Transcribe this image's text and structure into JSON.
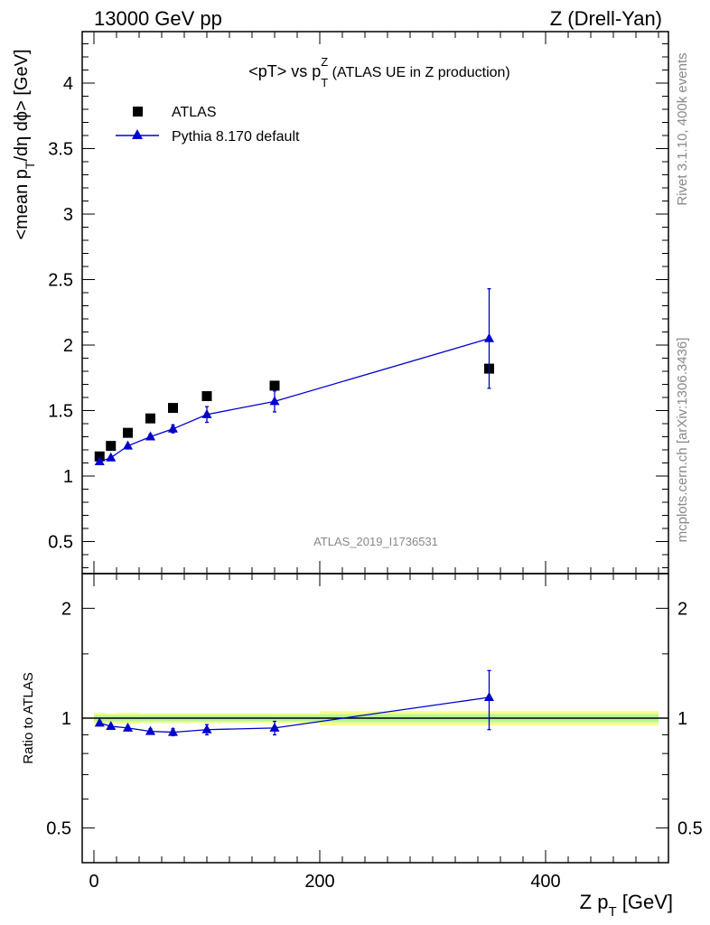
{
  "header": {
    "left": "13000 GeV pp",
    "right": "Z (Drell-Yan)"
  },
  "side_labels": {
    "rivet": "Rivet 3.1.10,  400k events",
    "mcplots": "mcplots.cern.ch [arXiv:1306.3436]"
  },
  "watermark": "ATLAS_2019_I1736531",
  "chart_data": [
    {
      "type": "scatter",
      "title_main": "<pT> vs p",
      "title_sub": "T",
      "title_sup": "Z",
      "title_rest": " (ATLAS UE in Z production)",
      "ylabel_main": "<mean p",
      "ylabel_sub": "T",
      "ylabel_rest": "/dη dϕ> [GeV]",
      "xlim": [
        0,
        500
      ],
      "ylim": [
        0.3,
        4.4
      ],
      "grid": false,
      "legend_position": "top-left",
      "yticks": [
        "0.5",
        "1",
        "1.5",
        "2",
        "2.5",
        "3",
        "3.5",
        "4"
      ],
      "series": [
        {
          "name": "ATLAS",
          "marker": "square",
          "color": "#000000",
          "x": [
            5,
            15,
            30,
            50,
            70,
            100,
            160,
            350
          ],
          "y": [
            1.15,
            1.23,
            1.33,
            1.44,
            1.52,
            1.61,
            1.69,
            1.82
          ]
        },
        {
          "name": "Pythia 8.170 default",
          "marker": "triangle",
          "color": "#0000cc",
          "x": [
            5,
            15,
            30,
            50,
            70,
            100,
            160,
            350
          ],
          "y": [
            1.11,
            1.14,
            1.23,
            1.3,
            1.36,
            1.47,
            1.57,
            2.05
          ],
          "yerr": [
            0.01,
            0.01,
            0.01,
            0.02,
            0.03,
            0.06,
            0.08,
            0.38
          ]
        }
      ]
    },
    {
      "type": "scatter",
      "ylabel": "Ratio to ATLAS",
      "xlabel_main": "Z p",
      "xlabel_sub": "T",
      "xlabel_rest": " [GeV]",
      "xlim": [
        0,
        500
      ],
      "ylim": [
        0.4,
        2.25
      ],
      "log_y": true,
      "xticks": [
        "0",
        "200",
        "400"
      ],
      "yticks": [
        "0.5",
        "1",
        "2"
      ],
      "band": {
        "color_outer": "#f5ff86",
        "color_inner": "#b6f59a"
      },
      "series": [
        {
          "name": "Pythia 8.170 default",
          "color": "#0000cc",
          "x": [
            5,
            15,
            30,
            50,
            70,
            100,
            160,
            350
          ],
          "y": [
            0.97,
            0.95,
            0.94,
            0.92,
            0.915,
            0.93,
            0.94,
            1.14
          ],
          "yerr": [
            0.01,
            0.01,
            0.01,
            0.015,
            0.02,
            0.03,
            0.04,
            0.21
          ]
        }
      ]
    }
  ]
}
